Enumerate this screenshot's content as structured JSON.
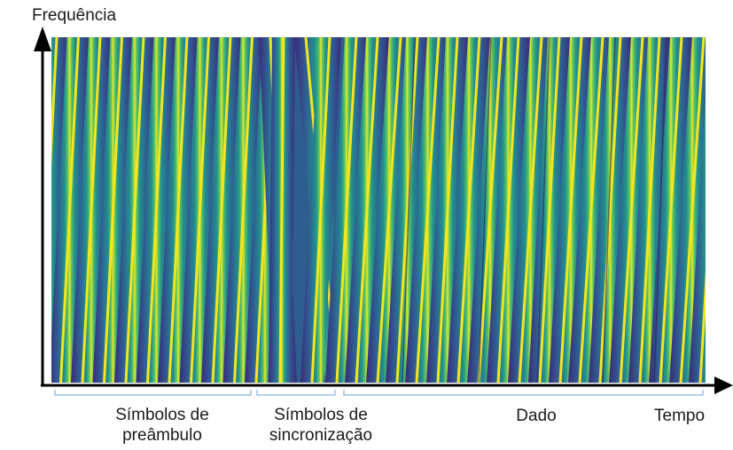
{
  "axes": {
    "y_label": "Frequência",
    "x_label": "Tempo"
  },
  "segments": {
    "preamble": {
      "line1": "Símbolos de",
      "line2": "preâmbulo",
      "chirp_direction": "up",
      "chirp_count": 10
    },
    "sync": {
      "line1": "Símbolos de",
      "line2": "sincronização",
      "chirp_direction": "down",
      "chirp_count": 2
    },
    "data": {
      "label": "Dado",
      "chirp_direction": "up"
    }
  },
  "colors": {
    "background_dark": "#3b2a7a",
    "mid_teal": "#25858e",
    "bright_green": "#5ec962",
    "chirp_line": "#f4e61e",
    "axis": "#000000",
    "bracket": "#9fbfe6"
  }
}
